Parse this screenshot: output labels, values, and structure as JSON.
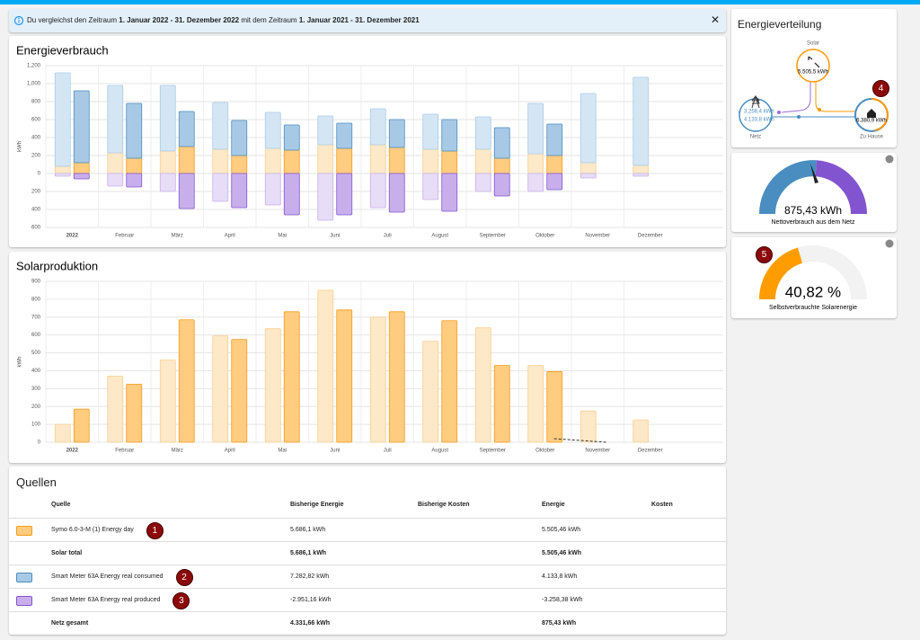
{
  "banner": {
    "parts": [
      "Du vergleichst den Zeitraum ",
      "1. Januar 2022 - 31. Dezember 2022",
      " mit dem Zeitraum ",
      "1. Januar 2021 - 31. Dezember 2021"
    ],
    "close": "✕"
  },
  "chart_data": [
    {
      "type": "bar",
      "title": "Energieverbrauch",
      "y_label": "kWh",
      "stacked": true,
      "categories": [
        "2022",
        "Februar",
        "März",
        "April",
        "Mai",
        "Juni",
        "Juli",
        "August",
        "September",
        "Oktober",
        "November",
        "Dezember"
      ],
      "ylim": [
        -600,
        1200
      ],
      "yticks": [
        {
          "value": 1200,
          "label": "1,200"
        },
        {
          "value": 1000,
          "label": "1,000"
        },
        800,
        600,
        400,
        200,
        0,
        {
          "value": -200,
          "label": "200"
        },
        {
          "value": -400,
          "label": "400"
        },
        {
          "value": -600,
          "label": "600"
        }
      ],
      "grid": true,
      "series": [
        {
          "stack": 0,
          "color": "#fde8c8",
          "border": "#f8cf8f",
          "values": [
            80,
            230,
            250,
            270,
            280,
            320,
            320,
            270,
            270,
            220,
            120,
            90
          ]
        },
        {
          "stack": 0,
          "color": "#d4e6f4",
          "border": "#a9cbe6",
          "values": [
            1040,
            750,
            730,
            520,
            400,
            320,
            400,
            390,
            360,
            560,
            770,
            980
          ]
        },
        {
          "stack": 0,
          "color": "#e7ddf6",
          "border": "#c7aeea",
          "values": [
            -30,
            -140,
            -200,
            -310,
            -350,
            -520,
            -380,
            -290,
            -200,
            -200,
            -50,
            -30
          ]
        },
        {
          "stack": 1,
          "color": "#ffcc80",
          "border": "#f59c1a",
          "values": [
            120,
            170,
            300,
            200,
            260,
            280,
            290,
            250,
            170,
            200,
            null,
            null
          ]
        },
        {
          "stack": 1,
          "color": "#a8c9e5",
          "border": "#4a8dc0",
          "values": [
            800,
            610,
            390,
            390,
            280,
            280,
            310,
            350,
            340,
            350,
            null,
            null
          ]
        },
        {
          "stack": 1,
          "color": "#c8afec",
          "border": "#8354cf",
          "values": [
            -60,
            -150,
            -390,
            -380,
            -460,
            -460,
            -430,
            -420,
            -250,
            -180,
            null,
            null
          ]
        }
      ]
    },
    {
      "type": "bar",
      "title": "Solarproduktion",
      "y_label": "kWh",
      "stacked": true,
      "categories": [
        "2022",
        "Februar",
        "März",
        "April",
        "Mai",
        "Juni",
        "Juli",
        "August",
        "September",
        "Oktober",
        "November",
        "Dezember"
      ],
      "ylim": [
        0,
        900
      ],
      "yticks": [
        900,
        800,
        700,
        600,
        500,
        400,
        300,
        200,
        100,
        0
      ],
      "grid": true,
      "series": [
        {
          "stack": 0,
          "color": "#fde8c8",
          "border": "#f8cf8f",
          "values": [
            100,
            370,
            460,
            595,
            635,
            850,
            700,
            565,
            640,
            430,
            175,
            125
          ]
        },
        {
          "stack": 1,
          "color": "#ffcc80",
          "border": "#f59c1a",
          "values": [
            185,
            325,
            685,
            575,
            730,
            740,
            730,
            680,
            430,
            395,
            null,
            null
          ]
        },
        {
          "type": "line",
          "dashed": true,
          "color": "#333333",
          "values": [
            null,
            null,
            null,
            null,
            null,
            null,
            null,
            null,
            null,
            20,
            0,
            null
          ]
        }
      ]
    }
  ],
  "sources": {
    "title": "Quellen",
    "headers": [
      "Quelle",
      "Bisherige Energie",
      "Bisherige Kosten",
      "Energie",
      "Kosten"
    ],
    "rows": [
      {
        "color": "#ffcc80",
        "border": "#f59c1a",
        "source": "Symo 6.0-3-M (1) Energy day",
        "previous_energy": "5.686,1 kWh",
        "energy": "5.505,46 kWh",
        "badge": 1
      },
      {
        "total": true,
        "source": "Solar total",
        "previous_energy": "5.686,1 kWh",
        "energy": "5.505,46 kWh"
      },
      {
        "color": "#a8c9e5",
        "border": "#4a8dc0",
        "source": "Smart Meter 63A Energy real consumed",
        "previous_energy": "7.282,82 kWh",
        "energy": "4.133,8 kWh",
        "badge": 2
      },
      {
        "color": "#c8afec",
        "border": "#8354cf",
        "source": "Smart Meter 63A Energy real produced",
        "previous_energy": "-2.951,16 kWh",
        "energy": "-3.258,38 kWh",
        "badge": 3
      },
      {
        "total": true,
        "source": "Netz gesamt",
        "previous_energy": "4.331,66 kWh",
        "energy": "875,43 kWh"
      }
    ]
  },
  "distribution": {
    "title": "Energieverteilung",
    "solar_label": "Solar",
    "solar_value": "5.505,5 kWh",
    "grid_label": "Netz",
    "grid_out": "← 3.258,4 kWh",
    "grid_in": "→ 4.133,8 kWh",
    "home_label": "Zu Hause",
    "home_value": "6.380,9 kWh",
    "badge": 4
  },
  "gauge_net": {
    "value": "875,43 kWh",
    "label": "Nettoverbrauch aus dem Netz"
  },
  "gauge_solar": {
    "value": 40.82,
    "value_label": "40,82 %",
    "label": "Selbstverbrauchte Solarenergie",
    "badge": 5
  }
}
